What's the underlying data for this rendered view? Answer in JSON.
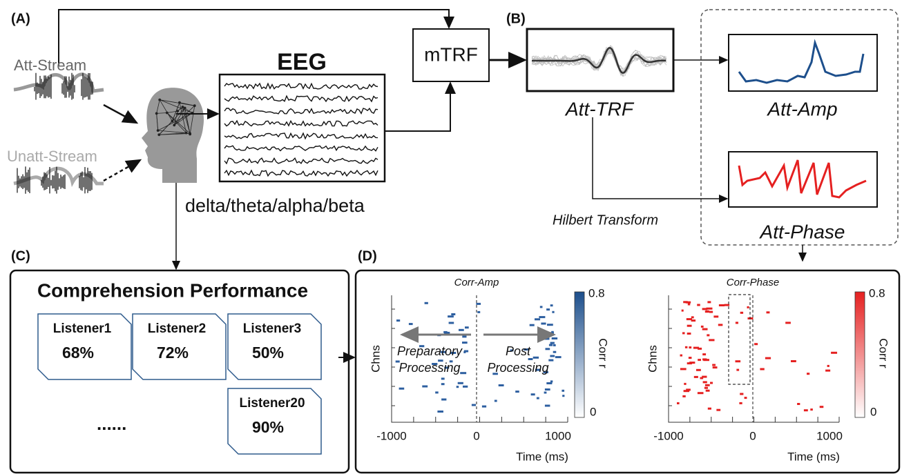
{
  "panel_a": {
    "label": "(A)",
    "att_stream": "Att-Stream",
    "unatt_stream": "Unatt-Stream",
    "eeg": "EEG",
    "bands": "delta/theta/alpha/beta",
    "mtrf": "mTRF"
  },
  "panel_b": {
    "label": "(B)",
    "att_trf": "Att-TRF",
    "att_amp": "Att-Amp",
    "att_phase": "Att-Phase",
    "hilbert": "Hilbert Transform"
  },
  "panel_c": {
    "label": "(C)",
    "title": "Comprehension Performance",
    "listeners": [
      {
        "name": "Listener1",
        "score": "68%"
      },
      {
        "name": "Listener2",
        "score": "72%"
      },
      {
        "name": "Listener3",
        "score": "50%"
      },
      {
        "name": "Listener20",
        "score": "90%"
      }
    ],
    "ellipsis": "......"
  },
  "panel_d": {
    "label": "(D)",
    "plots": [
      {
        "title": "Corr-Amp",
        "ylabel": "Chns",
        "xlabel": "Time (ms)",
        "xticks": [
          "-1000",
          "0",
          "1000"
        ],
        "colorbar_ticks": [
          "0.8",
          "0"
        ],
        "colorbar_label": "Corr r",
        "annotations": [
          [
            "Preparatory",
            "Processing"
          ],
          [
            "Post",
            "Processing"
          ]
        ]
      },
      {
        "title": "Corr-Phase",
        "ylabel": "Chns",
        "xlabel": "Time (ms)",
        "xticks": [
          "-1000",
          "0",
          "1000"
        ],
        "colorbar_ticks": [
          "0.8",
          "0"
        ],
        "colorbar_label": "Corr r"
      }
    ]
  }
}
